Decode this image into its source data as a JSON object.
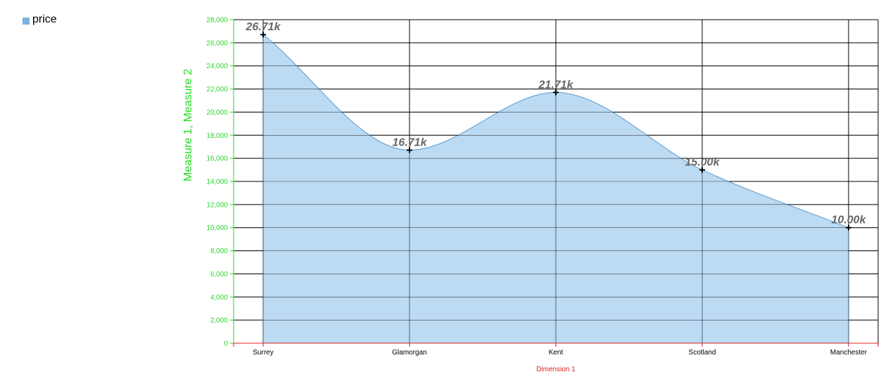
{
  "legend": {
    "label": "price"
  },
  "colors": {
    "area_fill": "#bcdaf2",
    "area_stroke": "#5a9bd0",
    "legend_swatch": "#7db3df",
    "y_axis": "#22dd22",
    "x_axis": "#dd2222",
    "grid": "#000000"
  },
  "chart_data": {
    "type": "area",
    "categories": [
      "Surrey",
      "Glamorgan",
      "Kent",
      "Scotland",
      "Manchester"
    ],
    "series": [
      {
        "name": "price",
        "values": [
          26710,
          16710,
          21710,
          15000,
          10000
        ],
        "labels": [
          "26.71k",
          "16.71k",
          "21.71k",
          "15.00k",
          "10.00k"
        ]
      }
    ],
    "xlabel": "Dimension 1",
    "ylabel": "Measure 1, Measure 2",
    "ylim": [
      0,
      28000
    ],
    "yticks": [
      "0",
      "2,000",
      "4,000",
      "6,000",
      "8,000",
      "10,000",
      "12,000",
      "14,000",
      "16,000",
      "18,000",
      "20,000",
      "22,000",
      "24,000",
      "26,000",
      "28,000"
    ],
    "grid": true,
    "legend_position": "top-left"
  }
}
